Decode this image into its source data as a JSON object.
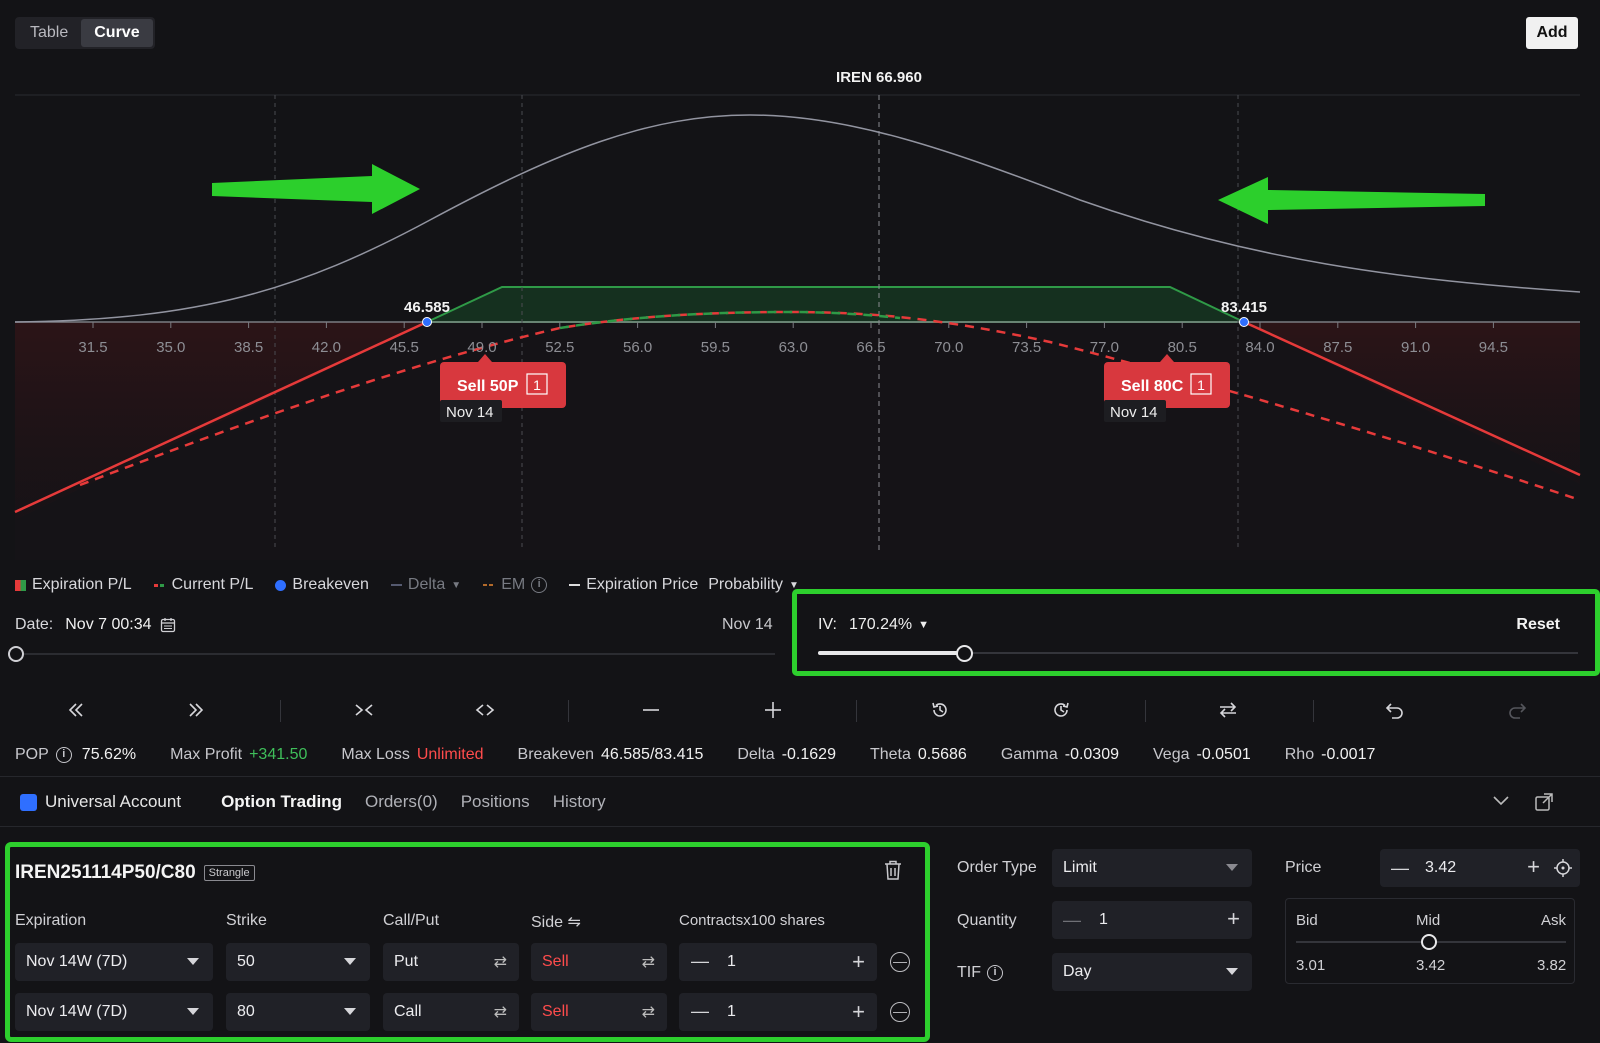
{
  "view_tabs": [
    "Table",
    "Curve"
  ],
  "add_label": "Add",
  "chart": {
    "underlying_label": "IREN 66.960",
    "breakeven_low": "46.585",
    "breakeven_high": "83.415",
    "x_ticks": [
      "31.5",
      "35.0",
      "38.5",
      "42.0",
      "45.5",
      "49.0",
      "52.5",
      "56.0",
      "59.5",
      "63.0",
      "66.5",
      "70.0",
      "73.5",
      "77.0",
      "80.5",
      "84.0",
      "87.5",
      "91.0",
      "94.5"
    ],
    "leg1_label": "Sell 50P",
    "leg1_qty": "1",
    "leg1_date": "Nov 14",
    "leg2_label": "Sell 80C",
    "leg2_qty": "1",
    "leg2_date": "Nov 14",
    "colors": {
      "profit": "#2f9a47",
      "loss": "#e63a3a",
      "breakeven": "#2f6fff",
      "arrow": "#2ccf2c"
    }
  },
  "legend": {
    "exp_pl": "Expiration P/L",
    "cur_pl": "Current P/L",
    "breakeven": "Breakeven",
    "delta": "Delta",
    "em": "EM",
    "exp_price": "Expiration Price",
    "probability": "Probability"
  },
  "date": {
    "label": "Date:",
    "value": "Nov 7 00:34",
    "end": "Nov 14"
  },
  "iv": {
    "label": "IV:",
    "value": "170.24%",
    "reset": "Reset",
    "slider_fraction": 0.19
  },
  "stats": {
    "pop_label": "POP",
    "pop": "75.62%",
    "max_profit_label": "Max Profit",
    "max_profit": "+341.50",
    "max_loss_label": "Max Loss",
    "max_loss": "Unlimited",
    "breakeven_label": "Breakeven",
    "breakeven": "46.585/83.415",
    "delta_label": "Delta",
    "delta": "-0.1629",
    "theta_label": "Theta",
    "theta": "0.5686",
    "gamma_label": "Gamma",
    "gamma": "-0.0309",
    "vega_label": "Vega",
    "vega": "-0.0501",
    "rho_label": "Rho",
    "rho": "-0.0017"
  },
  "account": {
    "name": "Universal Account",
    "tabs": [
      "Option Trading",
      "Orders(0)",
      "Positions",
      "History"
    ]
  },
  "strategy": {
    "symbol": "IREN251114P50/C80",
    "badge": "Strangle",
    "headers": {
      "expiration": "Expiration",
      "strike": "Strike",
      "callput": "Call/Put",
      "side": "Side ⇋",
      "contracts": "Contractsx100 shares"
    },
    "legs": [
      {
        "expiration": "Nov 14W (7D)",
        "strike": "50",
        "type": "Put",
        "side": "Sell",
        "qty": "1"
      },
      {
        "expiration": "Nov 14W (7D)",
        "strike": "80",
        "type": "Call",
        "side": "Sell",
        "qty": "1"
      }
    ]
  },
  "order": {
    "order_type_label": "Order Type",
    "order_type": "Limit",
    "quantity_label": "Quantity",
    "quantity": "1",
    "tif_label": "TIF",
    "tif": "Day",
    "price_label": "Price",
    "price": "3.42",
    "bid_label": "Bid",
    "mid_label": "Mid",
    "ask_label": "Ask",
    "bid": "3.01",
    "mid": "3.42",
    "ask": "3.82"
  }
}
